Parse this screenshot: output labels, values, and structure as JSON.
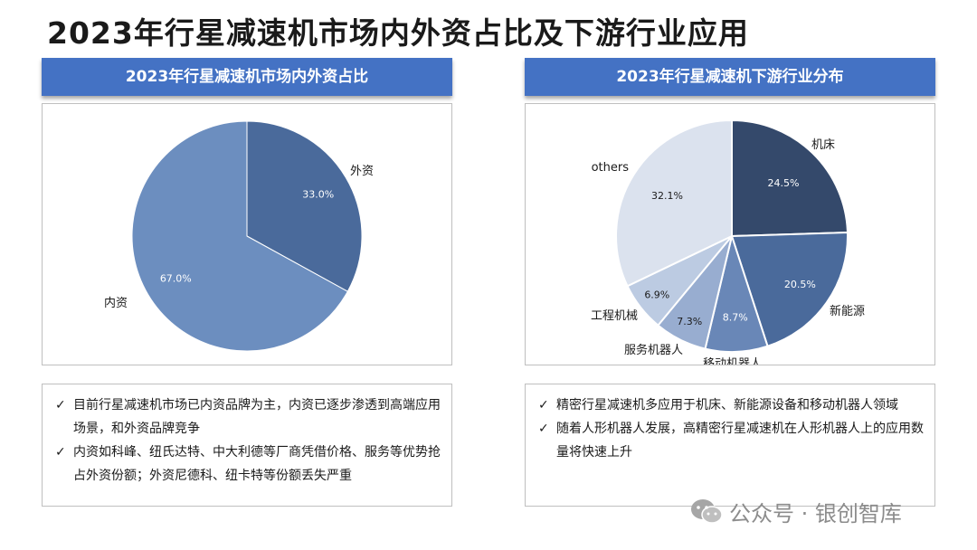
{
  "title": "2023年行星减速机市场内外资占比及下游行业应用",
  "left_panel": {
    "header": "2023年行星减速机市场内外资占比",
    "notes": [
      "目前行星减速机市场已内资品牌为主，内资已逐步渗透到高端应用场景，和外资品牌竞争",
      "内资如科峰、纽氏达特、中大利德等厂商凭借价格、服务等优势抢占外资份额；外资尼德科、纽卡特等份额丢失严重"
    ]
  },
  "right_panel": {
    "header": "2023年行星减速机下游行业分布",
    "notes": [
      "精密行星减速机多应用于机床、新能源设备和移动机器人领域",
      "随着人形机器人发展，高精密行星减速机在人形机器人上的应用数量将快速上升"
    ]
  },
  "check_glyph": "✓",
  "watermark": "公众号 · 银创智库",
  "chart_data": [
    {
      "type": "pie",
      "title": "",
      "slices": [
        {
          "label": "外资",
          "value": 33.0,
          "value_label": "33.0%",
          "color": "#4a6a9b"
        },
        {
          "label": "内资",
          "value": 67.0,
          "value_label": "67.0%",
          "color": "#6c8ebf"
        }
      ]
    },
    {
      "type": "pie",
      "title": "",
      "slices": [
        {
          "label": "机床",
          "value": 24.5,
          "value_label": "24.5%",
          "color": "#34496b"
        },
        {
          "label": "新能源",
          "value": 20.5,
          "value_label": "20.5%",
          "color": "#4a6a9b"
        },
        {
          "label": "移动机器人",
          "value": 8.7,
          "value_label": "8.7%",
          "color": "#6987b7"
        },
        {
          "label": "服务机器人",
          "value": 7.3,
          "value_label": "7.3%",
          "color": "#98add0"
        },
        {
          "label": "工程机械",
          "value": 6.9,
          "value_label": "6.9%",
          "color": "#bccbe2"
        },
        {
          "label": "others",
          "value": 32.1,
          "value_label": "32.1%",
          "color": "#dbe2ee"
        }
      ]
    }
  ]
}
